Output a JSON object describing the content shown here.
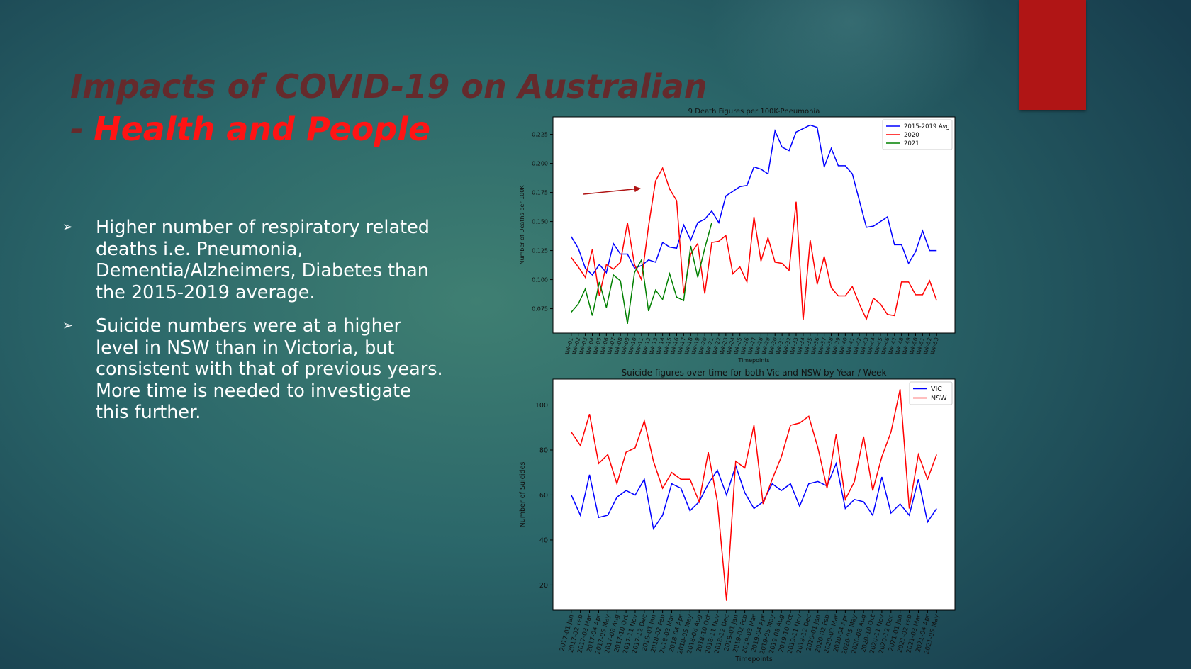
{
  "slide": {
    "title_line1": "Impacts of COVID-19 on Australian",
    "title_dash": "-",
    "title_line2": "Health and People",
    "bullets": [
      "Higher number of respiratory related deaths i.e. Pneumonia, Dementia/Alzheimers, Diabetes than the 2015-2019 average.",
      "Suicide numbers were at a higher level in NSW than in Victoria, but consistent with that of previous years. More time is needed to investigate this further."
    ]
  },
  "chart_data": [
    {
      "type": "line",
      "title": "9 Death Figures per 100K-Pneumonia",
      "xlabel": "Timepoints",
      "ylabel": "Number of Deaths per 100K",
      "categories": [
        "Wk-01",
        "Wk-02",
        "Wk-03",
        "Wk-04",
        "Wk-05",
        "Wk-06",
        "Wk-07",
        "Wk-08",
        "Wk-09",
        "Wk-10",
        "Wk-11",
        "Wk-12",
        "Wk-13",
        "Wk-14",
        "Wk-15",
        "Wk-16",
        "Wk-17",
        "Wk-18",
        "Wk-19",
        "Wk-20",
        "Wk-21",
        "Wk-22",
        "Wk-23",
        "Wk-24",
        "Wk-25",
        "Wk-26",
        "Wk-27",
        "Wk-28",
        "Wk-29",
        "Wk-30",
        "Wk-31",
        "Wk-32",
        "Wk-33",
        "Wk-34",
        "Wk-35",
        "Wk-36",
        "Wk-37",
        "Wk-38",
        "Wk-39",
        "Wk-40",
        "Wk-41",
        "Wk-42",
        "Wk-43",
        "Wk-44",
        "Wk-45",
        "Wk-46",
        "Wk-47",
        "Wk-48",
        "Wk-49",
        "Wk-50",
        "Wk-51",
        "Wk-52",
        "Wk-53"
      ],
      "series": [
        {
          "name": "2015-2019 Avg",
          "color": "#0000ff",
          "values": [
            0.137,
            0.127,
            0.11,
            0.104,
            0.113,
            0.106,
            0.131,
            0.122,
            0.122,
            0.11,
            0.112,
            0.117,
            0.115,
            0.132,
            0.128,
            0.127,
            0.147,
            0.134,
            0.149,
            0.152,
            0.159,
            0.149,
            0.172,
            0.176,
            0.18,
            0.181,
            0.197,
            0.195,
            0.191,
            0.228,
            0.214,
            0.211,
            0.227,
            0.23,
            0.233,
            0.231,
            0.197,
            0.213,
            0.198,
            0.198,
            0.191,
            0.168,
            0.145,
            0.146,
            0.15,
            0.154,
            0.13,
            0.13,
            0.114,
            0.124,
            0.142,
            0.125,
            0.125
          ]
        },
        {
          "name": "2020",
          "color": "#ff0000",
          "values": [
            0.119,
            0.111,
            0.102,
            0.126,
            0.086,
            0.113,
            0.109,
            0.115,
            0.149,
            0.113,
            0.1,
            0.146,
            0.185,
            0.196,
            0.178,
            0.168,
            0.088,
            0.122,
            0.131,
            0.088,
            0.132,
            0.133,
            0.138,
            0.105,
            0.111,
            0.098,
            0.154,
            0.116,
            0.136,
            0.115,
            0.114,
            0.108,
            0.167,
            0.065,
            0.134,
            0.096,
            0.12,
            0.093,
            0.086,
            0.086,
            0.094,
            0.079,
            0.066,
            0.084,
            0.079,
            0.07,
            0.069,
            0.098,
            0.098,
            0.087,
            0.087,
            0.099,
            0.082
          ]
        },
        {
          "name": "2021",
          "color": "#008000",
          "values": [
            0.072,
            0.079,
            0.092,
            0.069,
            0.098,
            0.076,
            0.104,
            0.099,
            0.062,
            0.106,
            0.117,
            0.073,
            0.091,
            0.083,
            0.105,
            0.085,
            0.082,
            0.129,
            0.102,
            0.127,
            0.149,
            null,
            null,
            null,
            null,
            null,
            null,
            null,
            null,
            null,
            null,
            null,
            null,
            null,
            null,
            null,
            null,
            null,
            null,
            null,
            null,
            null,
            null,
            null,
            null,
            null,
            null,
            null,
            null,
            null,
            null,
            null,
            null
          ]
        }
      ],
      "ylim": [
        0.054,
        0.24
      ],
      "yticks": [
        0.075,
        {
          "value": 0.1,
          "label": "0.100"
        },
        0.125,
        {
          "value": 0.15,
          "label": "0.150"
        },
        0.175,
        {
          "value": 0.2,
          "label": "0.200"
        },
        0.225
      ],
      "legend": "upper right"
    },
    {
      "type": "line",
      "title": "Suicide figures over time for both Vic and NSW by Year / Week",
      "xlabel": "Timepoints",
      "ylabel": "Number of Suicides",
      "categories": [
        "2017-01 Jan",
        "2017-02 Feb",
        "2017-03 Mar",
        "2017-04 Apr",
        "2017-05 May",
        "2017-08 Aug",
        "2017-10 Oct",
        "2017-11 Nov",
        "2017-12 Dec",
        "2018-01 Jan",
        "2018-02 Feb",
        "2018-03 Mar",
        "2018-04 Apr",
        "2018-05 May",
        "2018-08 Aug",
        "2018-10 Oct",
        "2018-11 Nov",
        "2018-12 Dec",
        "2019-01 Jan",
        "2019-02 Feb",
        "2019-03 Mar",
        "2019-04 Apr",
        "2019-05 May",
        "2019-08 Aug",
        "2019-10 Oct",
        "2019-11 Nov",
        "2019-12 Dec",
        "2020-01 Jan",
        "2020-02 Feb",
        "2020-03 Mar",
        "2020-04 Apr",
        "2020-05 May",
        "2020-08 Aug",
        "2020-10 Oct",
        "2020-11 Nov",
        "2020-12 Dec",
        "2021-01 Jan",
        "2021-02 Feb",
        "2021-03 Mar",
        "2021-04 Apr",
        "2021-05 May"
      ],
      "series": [
        {
          "name": "VIC",
          "color": "#0000ff",
          "values": [
            60,
            51,
            69,
            50,
            51,
            59,
            62,
            60,
            67,
            45,
            51,
            65,
            63,
            53,
            57,
            65,
            71,
            60,
            73,
            61,
            54,
            57,
            65,
            62,
            65,
            55,
            65,
            66,
            64,
            74,
            54,
            58,
            57,
            51,
            68,
            52,
            56,
            51,
            67,
            48,
            54
          ]
        },
        {
          "name": "NSW",
          "color": "#ff0000",
          "values": [
            88,
            82,
            96,
            74,
            78,
            65,
            79,
            81,
            93,
            75,
            63,
            70,
            67,
            67,
            57,
            79,
            57,
            13,
            75,
            72,
            91,
            56,
            67,
            77,
            91,
            92,
            95,
            81,
            63,
            87,
            58,
            66,
            86,
            62,
            77,
            88,
            107,
            54,
            78,
            67,
            78
          ]
        }
      ],
      "ylim": [
        8.8,
        111.5
      ],
      "yticks": [
        20,
        40,
        60,
        80,
        100
      ],
      "legend": "upper right"
    }
  ]
}
